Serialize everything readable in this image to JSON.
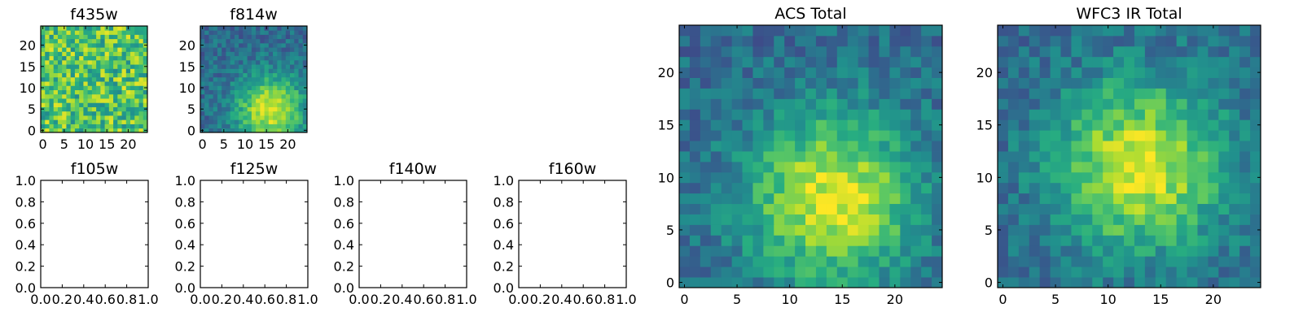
{
  "chart_data": [
    {
      "type": "heatmap",
      "title": "f435w",
      "xticks": [
        "0",
        "5",
        "10",
        "15",
        "20"
      ],
      "yticks": [
        "0",
        "5",
        "10",
        "15",
        "20"
      ],
      "xlim": [
        -0.5,
        24.5
      ],
      "ylim": [
        -0.5,
        24.5
      ],
      "grid_size": 25,
      "colormap": "viridis",
      "pattern": "noise",
      "mean_level": 0.72
    },
    {
      "type": "heatmap",
      "title": "f814w",
      "xticks": [
        "0",
        "5",
        "10",
        "15",
        "20"
      ],
      "yticks": [
        "0",
        "5",
        "10",
        "15",
        "20"
      ],
      "xlim": [
        -0.5,
        24.5
      ],
      "ylim": [
        -0.5,
        24.5
      ],
      "grid_size": 25,
      "colormap": "viridis",
      "pattern": "source",
      "peak": [
        16,
        5
      ]
    },
    {
      "type": "empty",
      "title": "f105w",
      "xticks": [
        "0.0",
        "0.2",
        "0.4",
        "0.6",
        "0.8",
        "1.0"
      ],
      "yticks": [
        "0.0",
        "0.2",
        "0.4",
        "0.6",
        "0.8",
        "1.0"
      ],
      "xlim": [
        0,
        1
      ],
      "ylim": [
        0,
        1
      ]
    },
    {
      "type": "empty",
      "title": "f125w",
      "xticks": [
        "0.0",
        "0.2",
        "0.4",
        "0.6",
        "0.8",
        "1.0"
      ],
      "yticks": [
        "0.0",
        "0.2",
        "0.4",
        "0.6",
        "0.8",
        "1.0"
      ],
      "xlim": [
        0,
        1
      ],
      "ylim": [
        0,
        1
      ]
    },
    {
      "type": "empty",
      "title": "f140w",
      "xticks": [
        "0.0",
        "0.2",
        "0.4",
        "0.6",
        "0.8",
        "1.0"
      ],
      "yticks": [
        "0.0",
        "0.2",
        "0.4",
        "0.6",
        "0.8",
        "1.0"
      ],
      "xlim": [
        0,
        1
      ],
      "ylim": [
        0,
        1
      ]
    },
    {
      "type": "empty",
      "title": "f160w",
      "xticks": [
        "0.0",
        "0.2",
        "0.4",
        "0.6",
        "0.8",
        "1.0"
      ],
      "yticks": [
        "0.0",
        "0.2",
        "0.4",
        "0.6",
        "0.8",
        "1.0"
      ],
      "xlim": [
        0,
        1
      ],
      "ylim": [
        0,
        1
      ]
    },
    {
      "type": "heatmap",
      "title": "ACS Total",
      "xticks": [
        "0",
        "5",
        "10",
        "15",
        "20"
      ],
      "yticks": [
        "0",
        "5",
        "10",
        "15",
        "20"
      ],
      "xlim": [
        -0.5,
        24.5
      ],
      "ylim": [
        -0.5,
        24.5
      ],
      "grid_size": 25,
      "colormap": "viridis",
      "pattern": "source",
      "peak": [
        14,
        8
      ]
    },
    {
      "type": "heatmap",
      "title": "WFC3 IR Total",
      "xticks": [
        "0",
        "5",
        "10",
        "15",
        "20"
      ],
      "yticks": [
        "0",
        "5",
        "10",
        "15",
        "20"
      ],
      "xlim": [
        -0.5,
        24.5
      ],
      "ylim": [
        -0.5,
        24.5
      ],
      "grid_size": 25,
      "colormap": "viridis",
      "pattern": "source",
      "peak": [
        13,
        11
      ]
    }
  ]
}
